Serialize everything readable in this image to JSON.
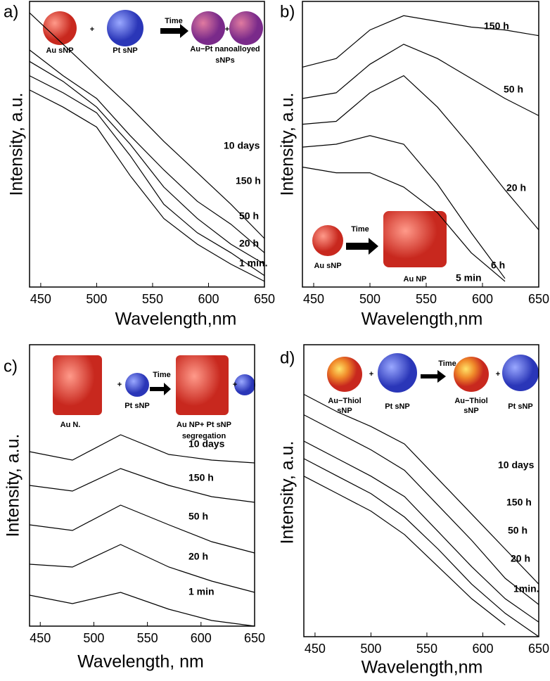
{
  "chart_data": [
    {
      "type": "line",
      "panel_label": "a)",
      "xlabel": "Wavelength,nm",
      "ylabel": "Intensity, a.u.",
      "x": [
        440,
        470,
        500,
        530,
        560,
        590,
        620,
        650
      ],
      "xlim": [
        440,
        650
      ],
      "xticks": [
        450,
        500,
        550,
        600,
        650
      ],
      "ylim": [
        0,
        100
      ],
      "line_color": "#000000",
      "series": [
        {
          "name": "10 days",
          "values": [
            96,
            85,
            74,
            63,
            51,
            40,
            29,
            17
          ]
        },
        {
          "name": "150 h",
          "values": [
            83,
            74,
            66,
            53,
            41,
            30,
            22,
            12
          ]
        },
        {
          "name": "50 h",
          "values": [
            79,
            72,
            63,
            50,
            35,
            24,
            15,
            8
          ]
        },
        {
          "name": "20 h",
          "values": [
            74,
            68,
            61,
            46,
            29,
            19,
            12,
            4
          ]
        },
        {
          "name": "1 min.",
          "values": [
            69,
            63,
            56,
            39,
            24,
            15,
            8,
            2
          ]
        }
      ],
      "annotations": [
        "Au sNP",
        "+",
        "Pt sNP",
        "Time",
        "+",
        "Au−Pt nanoalloyed",
        "sNPs"
      ]
    },
    {
      "type": "line",
      "panel_label": "b)",
      "xlabel": "Wavelength,nm",
      "ylabel": "Intensity, a.u.",
      "x": [
        440,
        470,
        500,
        530,
        560,
        590,
        620,
        650
      ],
      "xlim": [
        440,
        650
      ],
      "xticks": [
        450,
        500,
        550,
        600,
        650
      ],
      "ylim": [
        0,
        100
      ],
      "line_color": "#000000",
      "series": [
        {
          "name": "150 h",
          "values": [
            77,
            80,
            90,
            95,
            93,
            91,
            90,
            88
          ]
        },
        {
          "name": "50 h",
          "values": [
            66,
            68,
            78,
            85,
            80,
            73,
            66,
            60
          ]
        },
        {
          "name": "20 h",
          "values": [
            57,
            58,
            68,
            74,
            63,
            49,
            34,
            20
          ]
        },
        {
          "name": "6 h",
          "values": [
            49,
            50,
            53,
            50,
            36,
            19,
            3,
            null
          ]
        },
        {
          "name": "5 min",
          "values": [
            42,
            40,
            40,
            35,
            26,
            12,
            2,
            null
          ]
        }
      ],
      "annotations": [
        "Time",
        "Au sNP",
        "Au NP"
      ]
    },
    {
      "type": "line",
      "panel_label": "c)",
      "xlabel": "Wavelength, nm",
      "ylabel": "Intensity, a.u.",
      "x": [
        440,
        480,
        525,
        570,
        610,
        650
      ],
      "xlim": [
        440,
        650
      ],
      "xticks": [
        450,
        500,
        550,
        600,
        650
      ],
      "ylim": [
        0,
        100
      ],
      "line_color": "#000000",
      "series": [
        {
          "name": "10 days",
          "values": [
            62,
            59,
            68,
            61,
            59,
            58
          ]
        },
        {
          "name": "150 h",
          "values": [
            50,
            48,
            56,
            50,
            46,
            44
          ]
        },
        {
          "name": "50 h",
          "values": [
            36,
            34,
            43,
            36,
            30,
            26
          ]
        },
        {
          "name": "20 h",
          "values": [
            22,
            21,
            29,
            21,
            16,
            12
          ]
        },
        {
          "name": "1 min",
          "values": [
            11,
            8,
            12,
            6,
            2,
            0
          ]
        }
      ],
      "annotations": [
        "Au N.",
        "+",
        "Pt sNP",
        "Time",
        "Au NP+ Pt sNP",
        "segregation",
        "+"
      ]
    },
    {
      "type": "line",
      "panel_label": "d)",
      "xlabel": "Wavelength,nm",
      "ylabel": "Intensity, a.u.",
      "x": [
        440,
        470,
        500,
        530,
        560,
        590,
        620,
        650
      ],
      "xlim": [
        440,
        650
      ],
      "xticks": [
        450,
        500,
        550,
        600,
        650
      ],
      "ylim": [
        0,
        100
      ],
      "line_color": "#000000",
      "series": [
        {
          "name": "10 days",
          "values": [
            83,
            77,
            72,
            66,
            54,
            42,
            30,
            18
          ]
        },
        {
          "name": "150 h",
          "values": [
            76,
            70,
            64,
            57,
            45,
            33,
            20,
            11
          ]
        },
        {
          "name": "50 h",
          "values": [
            67,
            61,
            55,
            48,
            36,
            24,
            13,
            5
          ]
        },
        {
          "name": "20 h",
          "values": [
            61,
            55,
            49,
            41,
            30,
            18,
            8,
            0
          ]
        },
        {
          "name": "1min.",
          "values": [
            55,
            49,
            43,
            35,
            24,
            13,
            4,
            null
          ]
        }
      ],
      "annotations": [
        "Au−Thiol",
        "sNP",
        "+",
        "Pt sNP",
        "Time",
        "Au−Thiol",
        "sNP",
        "+",
        "Pt sNP"
      ]
    }
  ]
}
